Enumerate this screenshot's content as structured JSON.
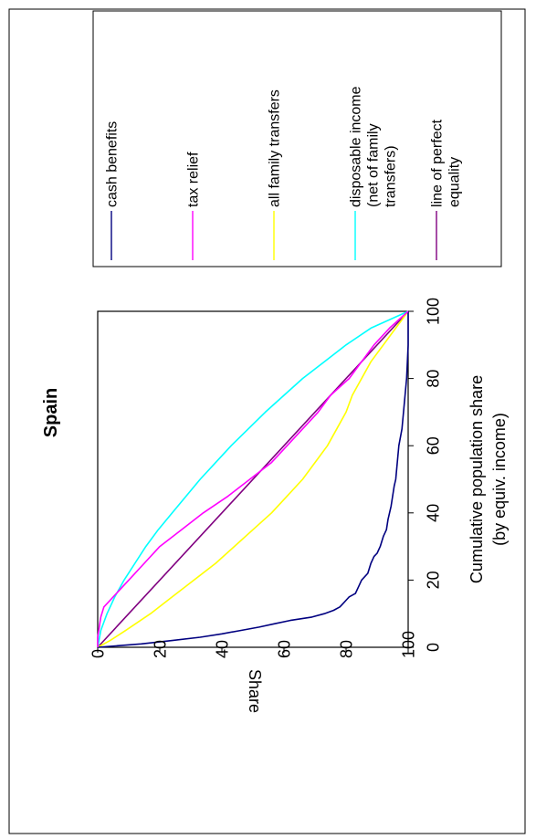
{
  "chart_data": {
    "type": "line",
    "orientation": "rotated-90-ccw",
    "title": "Spain",
    "xlabel_lines": [
      "Cumulative population share",
      "(by equiv. income)"
    ],
    "ylabel": "Share",
    "x_ticks": [
      "0",
      "20",
      "40",
      "60",
      "80",
      "100"
    ],
    "y_ticks": [
      "0",
      "20",
      "40",
      "60",
      "80",
      "100"
    ],
    "xlim": [
      0,
      100
    ],
    "ylim": [
      0,
      100
    ],
    "grid": false,
    "legend_position": "right",
    "series": [
      {
        "name": "cash benefits",
        "color": "#000080",
        "x": [
          0,
          1,
          2,
          3,
          4,
          5,
          6,
          7,
          8,
          9,
          10,
          11,
          12,
          13,
          14,
          15,
          16,
          18,
          20,
          22,
          25,
          27,
          28,
          30,
          33,
          35,
          38,
          40,
          42,
          45,
          48,
          50,
          55,
          60,
          65,
          70,
          75,
          80,
          90,
          100
        ],
        "y": [
          0,
          14,
          24,
          33,
          40,
          46,
          52,
          57,
          62,
          69,
          73,
          76,
          78,
          79,
          80,
          81,
          83,
          84,
          85,
          87,
          88,
          89,
          90,
          91,
          92,
          93,
          93.5,
          94,
          94.5,
          95,
          95.5,
          96,
          96.5,
          97,
          98,
          98.5,
          99,
          99.5,
          100,
          100
        ]
      },
      {
        "name": "tax relief",
        "color": "#FF00FF",
        "x": [
          0,
          3,
          6,
          9,
          12,
          14,
          17,
          20,
          25,
          30,
          35,
          40,
          45,
          50,
          55,
          60,
          65,
          70,
          75,
          80,
          85,
          90,
          95,
          100
        ],
        "y": [
          0,
          0,
          0.5,
          1,
          2,
          4,
          7,
          10,
          15,
          20,
          27,
          34,
          42,
          49,
          56,
          61,
          66,
          71,
          75,
          81,
          85,
          89,
          94,
          100
        ]
      },
      {
        "name": "all family transfers",
        "color": "#FFFF00",
        "x": [
          0,
          2,
          5,
          10,
          15,
          20,
          25,
          30,
          35,
          40,
          45,
          50,
          55,
          60,
          65,
          70,
          75,
          80,
          85,
          90,
          95,
          100
        ],
        "y": [
          0,
          4,
          9,
          17,
          24,
          31,
          38,
          44,
          50,
          56,
          61,
          66,
          70,
          74,
          77,
          80,
          82,
          85,
          88,
          92,
          96,
          100
        ]
      },
      {
        "name": "disposable income (net of family transfers)",
        "color": "#00FFFF",
        "x": [
          0,
          5,
          10,
          15,
          20,
          25,
          30,
          35,
          40,
          45,
          50,
          55,
          60,
          65,
          70,
          75,
          80,
          85,
          90,
          95,
          100
        ],
        "y": [
          0,
          1,
          3,
          5.5,
          8.5,
          12,
          15.5,
          19.5,
          24,
          28.5,
          33,
          38,
          43,
          48.5,
          54,
          60,
          66,
          73,
          80,
          88,
          100
        ]
      },
      {
        "name": "line of perfect equality",
        "color": "#800080",
        "x": [
          0,
          100
        ],
        "y": [
          0,
          100
        ]
      }
    ],
    "legend_labels": [
      [
        "cash benefits"
      ],
      [
        "tax relief"
      ],
      [
        "all family transfers"
      ],
      [
        "disposable income",
        "(net of family",
        "transfers)"
      ],
      [
        "line of perfect",
        "equality"
      ]
    ]
  }
}
